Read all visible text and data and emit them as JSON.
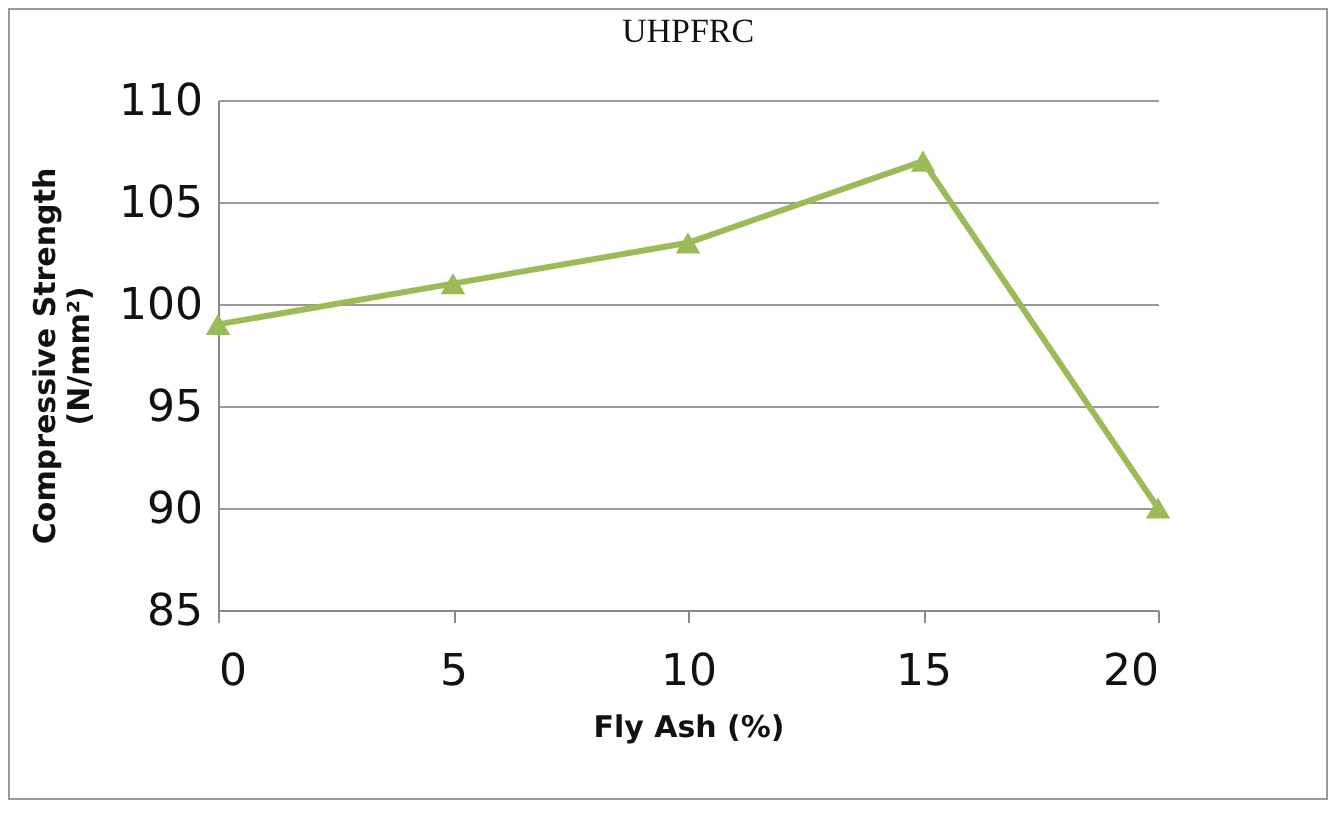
{
  "chart_data": {
    "type": "line",
    "title": "UHPFRC",
    "xlabel": "Fly Ash (%)",
    "ylabel": "Compressive Strength (N/mm²)",
    "x": [
      0,
      5,
      10,
      15,
      20
    ],
    "series": [
      {
        "color": "#9bbb59",
        "values": [
          99,
          101,
          103,
          107,
          90
        ]
      }
    ],
    "xlim": [
      0,
      20
    ],
    "xticks": [
      0,
      5,
      10,
      15,
      20
    ],
    "ylim": [
      85,
      110
    ],
    "yticks": [
      85,
      90,
      95,
      100,
      105,
      110
    ],
    "grid": "y",
    "marker": "triangle",
    "line_style": "solid"
  }
}
